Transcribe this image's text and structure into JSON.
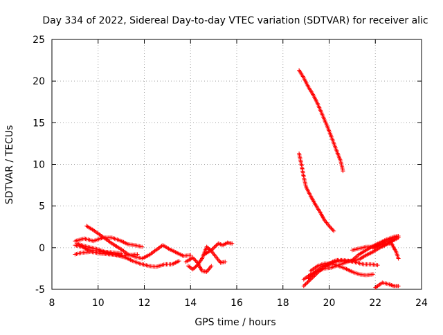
{
  "chart_data": {
    "type": "scatter",
    "title": "Day 334 of 2022, Sidereal Day-to-day VTEC variation (SDTVAR) for receiver alic",
    "xlabel": "GPS time / hours",
    "ylabel": "SDTVAR / TECUs",
    "xlim": [
      8,
      24
    ],
    "ylim": [
      -5,
      25
    ],
    "xticks": [
      "8",
      "10",
      "12",
      "14",
      "16",
      "18",
      "20",
      "22",
      "24"
    ],
    "yticks": [
      "-5",
      "0",
      "5",
      "10",
      "15",
      "20",
      "25"
    ],
    "grid": true,
    "marker": "+",
    "color": "#ff0000",
    "series": [
      {
        "name": "arc-1",
        "points": [
          [
            9.0,
            0.3
          ],
          [
            9.3,
            0.1
          ],
          [
            9.6,
            -0.3
          ],
          [
            10.0,
            -0.4
          ],
          [
            10.4,
            -0.6
          ],
          [
            10.8,
            -0.9
          ],
          [
            11.2,
            -1.2
          ],
          [
            11.5,
            -1.6
          ],
          [
            11.8,
            -1.9
          ],
          [
            12.2,
            -2.2
          ],
          [
            12.5,
            -2.3
          ],
          [
            12.9,
            -2.0
          ],
          [
            13.2,
            -2.0
          ],
          [
            13.5,
            -1.6
          ]
        ]
      },
      {
        "name": "arc-2",
        "points": [
          [
            9.5,
            2.6
          ],
          [
            9.8,
            2.1
          ],
          [
            10.2,
            1.3
          ],
          [
            10.6,
            0.5
          ],
          [
            11.0,
            -0.2
          ],
          [
            11.3,
            -0.8
          ],
          [
            11.6,
            -1.1
          ],
          [
            11.9,
            -1.3
          ],
          [
            12.2,
            -0.9
          ],
          [
            12.5,
            -0.3
          ],
          [
            12.8,
            0.3
          ],
          [
            13.1,
            -0.2
          ],
          [
            13.4,
            -0.6
          ],
          [
            13.7,
            -1.0
          ],
          [
            14.0,
            -0.9
          ]
        ]
      },
      {
        "name": "arc-3",
        "points": [
          [
            9.0,
            0.8
          ],
          [
            9.4,
            1.1
          ],
          [
            9.8,
            0.8
          ],
          [
            10.2,
            1.2
          ],
          [
            10.6,
            1.2
          ],
          [
            11.0,
            0.8
          ],
          [
            11.3,
            0.4
          ],
          [
            11.6,
            0.3
          ],
          [
            11.9,
            0.1
          ]
        ]
      },
      {
        "name": "arc-4",
        "points": [
          [
            9.0,
            -0.8
          ],
          [
            9.3,
            -0.6
          ],
          [
            9.7,
            -0.5
          ],
          [
            10.1,
            -0.7
          ],
          [
            10.5,
            -0.8
          ],
          [
            10.9,
            -0.9
          ],
          [
            11.3,
            -0.9
          ],
          [
            11.7,
            -0.8
          ]
        ]
      },
      {
        "name": "arc-5",
        "points": [
          [
            9.1,
            0.5
          ],
          [
            9.4,
            0.2
          ],
          [
            9.7,
            0.0
          ],
          [
            10.0,
            -0.2
          ],
          [
            10.3,
            -0.5
          ],
          [
            10.7,
            -0.6
          ],
          [
            11.0,
            -0.7
          ]
        ]
      },
      {
        "name": "arc-6",
        "points": [
          [
            13.8,
            -1.7
          ],
          [
            14.1,
            -1.2
          ],
          [
            14.3,
            -1.8
          ],
          [
            14.5,
            -2.8
          ],
          [
            14.7,
            -2.9
          ],
          [
            14.9,
            -2.2
          ]
        ]
      },
      {
        "name": "arc-7",
        "points": [
          [
            13.9,
            -2.2
          ],
          [
            14.1,
            -2.6
          ],
          [
            14.3,
            -2.1
          ],
          [
            14.5,
            -1.3
          ],
          [
            14.7,
            0.1
          ],
          [
            14.9,
            -0.4
          ],
          [
            15.1,
            -1.1
          ],
          [
            15.3,
            -1.8
          ],
          [
            15.5,
            -1.7
          ]
        ]
      },
      {
        "name": "arc-8",
        "points": [
          [
            14.6,
            -0.8
          ],
          [
            14.9,
            -0.3
          ],
          [
            15.2,
            0.5
          ],
          [
            15.4,
            0.3
          ],
          [
            15.6,
            0.6
          ],
          [
            15.8,
            0.5
          ]
        ]
      },
      {
        "name": "arc-9",
        "points": [
          [
            18.7,
            21.3
          ],
          [
            18.9,
            20.4
          ],
          [
            19.1,
            19.3
          ],
          [
            19.3,
            18.4
          ],
          [
            19.5,
            17.3
          ],
          [
            19.7,
            16.0
          ],
          [
            19.9,
            14.7
          ],
          [
            20.1,
            13.3
          ],
          [
            20.3,
            11.8
          ],
          [
            20.5,
            10.4
          ],
          [
            20.6,
            9.2
          ]
        ]
      },
      {
        "name": "arc-10",
        "points": [
          [
            18.7,
            11.3
          ],
          [
            18.8,
            10.0
          ],
          [
            18.9,
            8.5
          ],
          [
            19.0,
            7.3
          ],
          [
            19.2,
            6.2
          ],
          [
            19.4,
            5.2
          ],
          [
            19.6,
            4.3
          ],
          [
            19.8,
            3.3
          ],
          [
            20.0,
            2.6
          ],
          [
            20.2,
            2.0
          ]
        ]
      },
      {
        "name": "arc-11",
        "points": [
          [
            18.9,
            -4.6
          ],
          [
            19.2,
            -3.8
          ],
          [
            19.5,
            -3.0
          ],
          [
            19.8,
            -2.3
          ],
          [
            20.1,
            -1.9
          ],
          [
            20.4,
            -1.6
          ],
          [
            20.7,
            -1.6
          ],
          [
            21.0,
            -1.6
          ],
          [
            21.3,
            -1.4
          ],
          [
            21.6,
            -0.9
          ],
          [
            21.9,
            -0.5
          ],
          [
            22.2,
            0.0
          ],
          [
            22.5,
            0.4
          ],
          [
            22.8,
            0.9
          ],
          [
            23.0,
            1.2
          ]
        ]
      },
      {
        "name": "arc-12",
        "points": [
          [
            18.9,
            -3.8
          ],
          [
            19.2,
            -3.2
          ],
          [
            19.5,
            -2.8
          ],
          [
            19.8,
            -2.5
          ],
          [
            20.1,
            -2.4
          ],
          [
            20.4,
            -2.1
          ],
          [
            20.7,
            -1.8
          ],
          [
            21.0,
            -1.5
          ],
          [
            21.3,
            -0.8
          ],
          [
            21.6,
            -0.3
          ],
          [
            21.9,
            0.2
          ],
          [
            22.2,
            0.6
          ],
          [
            22.5,
            1.0
          ],
          [
            22.8,
            1.3
          ],
          [
            23.0,
            1.4
          ]
        ]
      },
      {
        "name": "arc-13",
        "points": [
          [
            19.1,
            -3.7
          ],
          [
            19.4,
            -2.9
          ],
          [
            19.7,
            -2.3
          ],
          [
            20.0,
            -1.9
          ],
          [
            20.3,
            -1.5
          ],
          [
            20.6,
            -1.5
          ],
          [
            20.9,
            -1.6
          ],
          [
            21.2,
            -1.8
          ],
          [
            21.5,
            -2.0
          ],
          [
            21.8,
            -2.0
          ],
          [
            22.1,
            -2.1
          ]
        ]
      },
      {
        "name": "arc-14",
        "points": [
          [
            19.2,
            -2.8
          ],
          [
            19.5,
            -2.2
          ],
          [
            19.8,
            -1.9
          ],
          [
            20.1,
            -1.9
          ],
          [
            20.4,
            -2.2
          ],
          [
            20.7,
            -2.5
          ],
          [
            21.0,
            -2.9
          ],
          [
            21.3,
            -3.2
          ],
          [
            21.6,
            -3.3
          ],
          [
            21.9,
            -3.2
          ]
        ]
      },
      {
        "name": "arc-15",
        "points": [
          [
            21.0,
            -0.3
          ],
          [
            21.3,
            -0.1
          ],
          [
            21.6,
            0.1
          ],
          [
            21.9,
            0.1
          ],
          [
            22.2,
            0.4
          ],
          [
            22.5,
            0.7
          ],
          [
            22.8,
            1.2
          ],
          [
            22.9,
            1.3
          ]
        ]
      },
      {
        "name": "arc-16",
        "points": [
          [
            21.9,
            -0.1
          ],
          [
            22.2,
            0.3
          ],
          [
            22.5,
            0.5
          ],
          [
            22.7,
            0.5
          ],
          [
            22.9,
            -0.5
          ],
          [
            23.0,
            -1.3
          ]
        ]
      },
      {
        "name": "arc-17",
        "points": [
          [
            22.0,
            -4.8
          ],
          [
            22.3,
            -4.2
          ],
          [
            22.6,
            -4.4
          ],
          [
            22.8,
            -4.6
          ],
          [
            23.0,
            -4.6
          ]
        ]
      }
    ]
  }
}
